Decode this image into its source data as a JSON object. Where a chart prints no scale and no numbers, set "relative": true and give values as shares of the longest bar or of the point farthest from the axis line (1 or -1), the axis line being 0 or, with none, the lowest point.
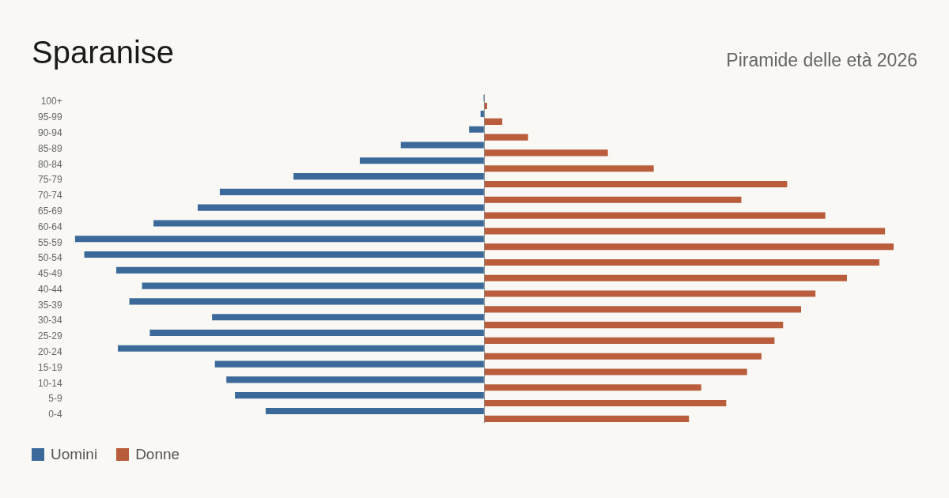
{
  "chart_data": {
    "type": "bar",
    "orientation": "horizontal",
    "relative": true,
    "title": "Sparanise",
    "subtitle": "Piramide delle età 2026",
    "legend": "bottom left",
    "categories": [
      "100+",
      "95-99",
      "90-94",
      "85-89",
      "80-84",
      "75-79",
      "70-74",
      "65-69",
      "60-64",
      "55-59",
      "50-54",
      "45-49",
      "40-44",
      "35-39",
      "30-34",
      "25-29",
      "20-24",
      "15-19",
      "10-14",
      "5-9",
      "0-4"
    ],
    "series": [
      {
        "name": "Uomini",
        "color": "#3b6a9a",
        "values": [
          -0.002,
          -0.009,
          -0.037,
          -0.204,
          -0.304,
          -0.466,
          -0.646,
          -0.7,
          -0.808,
          -1,
          -0.977,
          -0.899,
          -0.836,
          -0.867,
          -0.665,
          -0.817,
          -0.895,
          -0.658,
          -0.63,
          -0.609,
          -0.534
        ]
      },
      {
        "name": "Donne",
        "color": "#b95d3c",
        "values": [
          0.007,
          0.044,
          0.107,
          0.302,
          0.414,
          0.74,
          0.628,
          0.833,
          0.979,
          1,
          0.965,
          0.886,
          0.809,
          0.774,
          0.73,
          0.709,
          0.677,
          0.642,
          0.53,
          0.591,
          0.5
        ]
      }
    ]
  }
}
